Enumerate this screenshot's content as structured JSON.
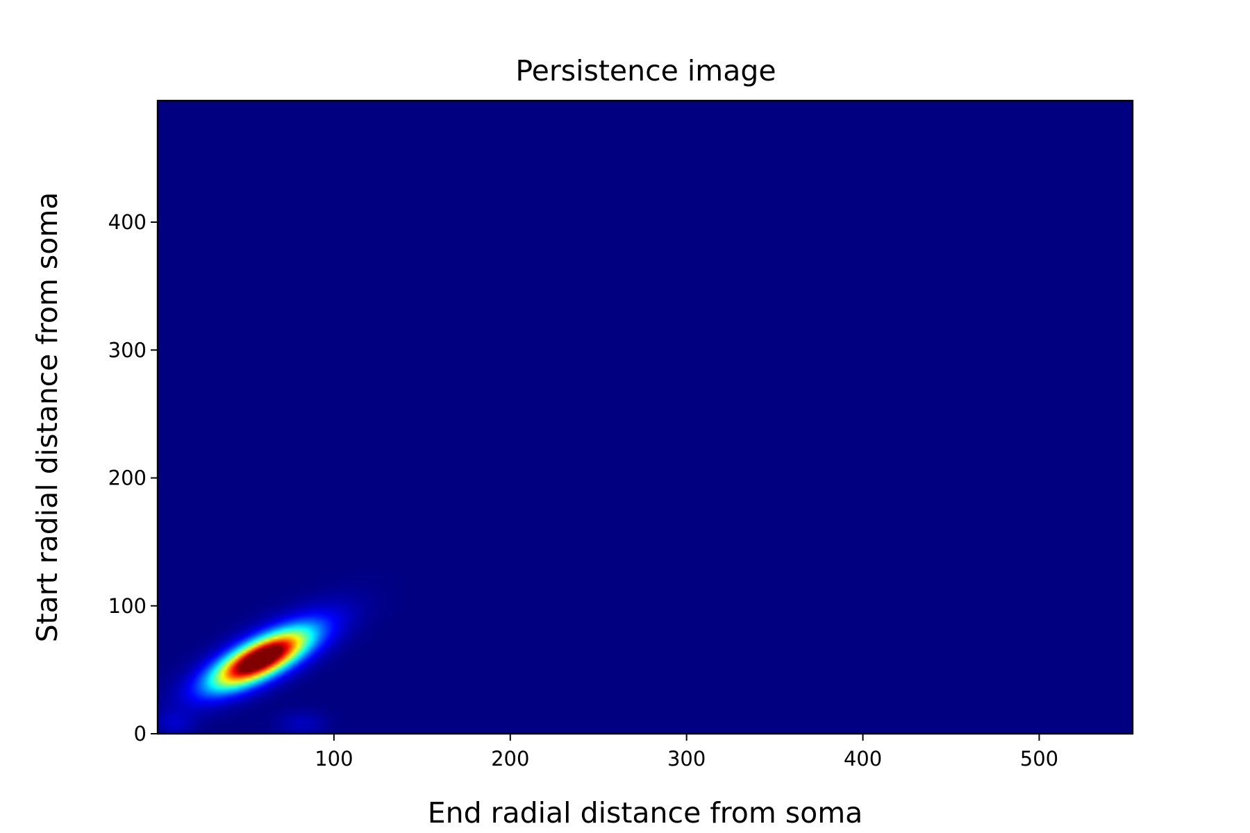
{
  "chart_data": {
    "type": "heatmap",
    "title": "Persistence image",
    "xlabel": "End radial distance from soma",
    "ylabel": "Start radial distance from soma",
    "xlim": [
      0,
      553
    ],
    "ylim": [
      0,
      495
    ],
    "x_ticks": [
      100,
      200,
      300,
      400,
      500
    ],
    "y_ticks": [
      0,
      100,
      200,
      300,
      400
    ],
    "colormap": "jet",
    "background_value": 0.0,
    "grid": false,
    "legend": "none",
    "peaks": [
      {
        "x": 58,
        "y": 58,
        "sx": 17,
        "sy": 14,
        "rho": 0.72,
        "value": 1.0
      },
      {
        "x": 62,
        "y": 62,
        "sx": 26,
        "sy": 22,
        "rho": 0.75,
        "value": 0.25
      },
      {
        "x": 10,
        "y": 8,
        "sx": 8,
        "sy": 7,
        "rho": 0.0,
        "value": 0.06
      },
      {
        "x": 82,
        "y": 8,
        "sx": 10,
        "sy": 7,
        "rho": 0.0,
        "value": 0.06
      }
    ]
  }
}
